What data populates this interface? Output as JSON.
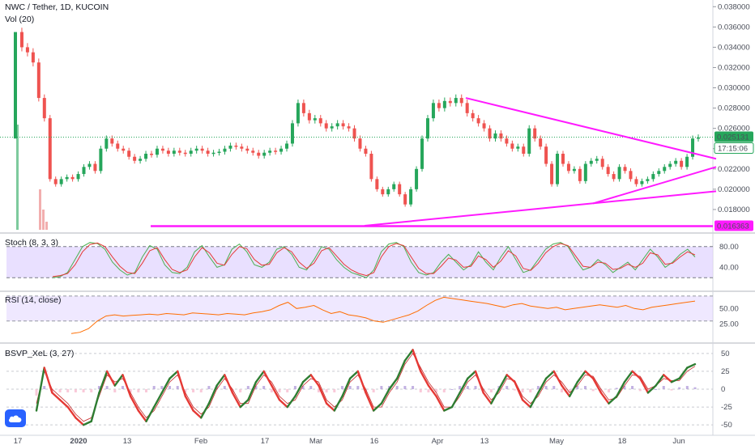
{
  "header": {
    "symbol_title": "NWC / Tether, 1D, KUCOIN",
    "volume_label": "Vol (20)"
  },
  "price_badges": {
    "last_price": "0.025131",
    "countdown": "17:15:06",
    "support_level": "0.016363"
  },
  "colors": {
    "up": "#26a65b",
    "down": "#ef5350",
    "trend": "#ff1aff",
    "stoch_k": "#4caf50",
    "stoch_d": "#e53935",
    "rsi": "#ff6d00",
    "band": "#e1d5ff",
    "logo": "#2962ff"
  },
  "x_axis": {
    "ticks": [
      "17",
      "2020",
      "13",
      "Feb",
      "17",
      "Mar",
      "16",
      "Apr",
      "13",
      "May",
      "18",
      "Jun"
    ]
  },
  "price_axis": {
    "ticks": [
      "0.038000",
      "0.036000",
      "0.034000",
      "0.032000",
      "0.030000",
      "0.028000",
      "0.026000",
      "0.024000",
      "0.022000",
      "0.020000",
      "0.018000"
    ]
  },
  "panes": {
    "stoch": {
      "title": "Stoch (8, 3, 3)",
      "ticks": [
        "80.00",
        "40.00"
      ]
    },
    "rsi": {
      "title": "RSI (14, close)",
      "ticks": [
        "50.00",
        "25.00"
      ]
    },
    "bsvp": {
      "title": "BSVP_XeL (3, 27)",
      "ticks": [
        "50",
        "25",
        "0",
        "-25",
        "-50"
      ]
    }
  },
  "chart_data": {
    "type": "candlestick",
    "price_ylim": [
      0.016,
      0.0385
    ],
    "price_series": [
      0.0355,
      0.034,
      0.0335,
      0.0325,
      0.029,
      0.027,
      0.021,
      0.0205,
      0.021,
      0.0212,
      0.021,
      0.0215,
      0.0222,
      0.0225,
      0.0218,
      0.024,
      0.025,
      0.0245,
      0.024,
      0.0238,
      0.0232,
      0.0228,
      0.023,
      0.0235,
      0.0234,
      0.024,
      0.0238,
      0.0235,
      0.0238,
      0.0236,
      0.0235,
      0.0238,
      0.024,
      0.0238,
      0.0235,
      0.0236,
      0.0237,
      0.024,
      0.0243,
      0.0242,
      0.024,
      0.0238,
      0.0236,
      0.0233,
      0.0236,
      0.0238,
      0.0237,
      0.024,
      0.0245,
      0.0265,
      0.0285,
      0.0275,
      0.0268,
      0.027,
      0.0265,
      0.026,
      0.0262,
      0.0265,
      0.0262,
      0.026,
      0.025,
      0.024,
      0.0235,
      0.021,
      0.02,
      0.0195,
      0.02,
      0.0205,
      0.0195,
      0.0185,
      0.02,
      0.022,
      0.025,
      0.027,
      0.0285,
      0.028,
      0.0287,
      0.0285,
      0.029,
      0.0285,
      0.0275,
      0.027,
      0.0265,
      0.026,
      0.025,
      0.0255,
      0.025,
      0.0245,
      0.024,
      0.0242,
      0.0235,
      0.026,
      0.025,
      0.0242,
      0.0225,
      0.0205,
      0.0235,
      0.0225,
      0.0218,
      0.022,
      0.0208,
      0.0225,
      0.0228,
      0.023,
      0.0222,
      0.0215,
      0.021,
      0.0222,
      0.0218,
      0.021,
      0.0205,
      0.0208,
      0.021,
      0.0215,
      0.0218,
      0.0222,
      0.0225,
      0.0228,
      0.0222,
      0.0232,
      0.025,
      0.0251
    ],
    "trendlines": [
      {
        "name": "upper-resistance",
        "from": {
          "x": "Apr 9",
          "y": 0.029
        },
        "to": {
          "x": "Jun 11",
          "y": 0.023
        }
      },
      {
        "name": "lower-support",
        "from": {
          "x": "Mar 11",
          "y": 0.0164
        },
        "to": {
          "x": "Jun 11",
          "y": 0.0198
        }
      },
      {
        "name": "inner-support",
        "from": {
          "x": "May 10",
          "y": 0.0186
        },
        "to": {
          "x": "Jun 11",
          "y": 0.0222
        }
      },
      {
        "name": "horizontal-support",
        "y": 0.016363
      }
    ],
    "stoch_ylim": [
      0,
      100
    ],
    "stoch_levels": [
      80,
      20
    ],
    "stoch_k": [
      20,
      22,
      30,
      55,
      80,
      88,
      86,
      75,
      50,
      35,
      25,
      30,
      60,
      82,
      75,
      45,
      30,
      28,
      40,
      70,
      82,
      60,
      40,
      45,
      75,
      85,
      70,
      45,
      40,
      50,
      75,
      80,
      65,
      40,
      35,
      55,
      80,
      75,
      55,
      40,
      30,
      25,
      20,
      35,
      70,
      85,
      88,
      80,
      50,
      30,
      25,
      30,
      50,
      65,
      50,
      35,
      45,
      70,
      50,
      35,
      60,
      80,
      55,
      30,
      35,
      55,
      75,
      85,
      88,
      80,
      55,
      35,
      40,
      55,
      45,
      30,
      40,
      50,
      35,
      55,
      75,
      60,
      40,
      50,
      65,
      75,
      60
    ],
    "stoch_d": [
      22,
      24,
      28,
      45,
      70,
      84,
      87,
      80,
      60,
      42,
      30,
      28,
      48,
      72,
      78,
      55,
      36,
      30,
      35,
      60,
      78,
      68,
      48,
      44,
      65,
      80,
      76,
      55,
      44,
      46,
      68,
      78,
      70,
      50,
      38,
      48,
      72,
      78,
      62,
      46,
      35,
      28,
      24,
      30,
      60,
      80,
      86,
      82,
      60,
      38,
      28,
      28,
      42,
      58,
      54,
      40,
      42,
      62,
      55,
      40,
      52,
      72,
      62,
      38,
      34,
      48,
      68,
      80,
      86,
      82,
      62,
      42,
      40,
      50,
      48,
      36,
      38,
      46,
      40,
      48,
      68,
      64,
      46,
      48,
      60,
      70,
      64
    ],
    "rsi_ylim": [
      0,
      75
    ],
    "rsi_levels": [
      70,
      30
    ],
    "rsi": [
      10,
      12,
      18,
      30,
      38,
      40,
      38,
      39,
      40,
      41,
      40,
      42,
      41,
      40,
      43,
      42,
      41,
      40,
      42,
      41,
      40,
      43,
      45,
      48,
      55,
      60,
      50,
      52,
      55,
      48,
      42,
      45,
      40,
      38,
      35,
      30,
      28,
      32,
      36,
      40,
      46,
      55,
      63,
      68,
      66,
      64,
      62,
      60,
      58,
      55,
      52,
      56,
      58,
      54,
      52,
      50,
      52,
      48,
      50,
      52,
      54,
      56,
      54,
      52,
      55,
      50,
      48,
      52,
      54,
      56,
      58,
      60,
      62
    ],
    "bsvp_ylim": [
      -60,
      60
    ],
    "bsvp_levels": [
      50,
      25,
      0,
      -25,
      -50
    ],
    "bsvp_main": [
      -30,
      30,
      -5,
      -15,
      -25,
      -40,
      -50,
      -45,
      -5,
      25,
      5,
      20,
      -10,
      -30,
      -45,
      -25,
      -5,
      15,
      25,
      -10,
      -30,
      -40,
      -20,
      5,
      20,
      -5,
      -25,
      -15,
      10,
      25,
      5,
      -15,
      -25,
      -10,
      10,
      20,
      5,
      -20,
      -30,
      -10,
      15,
      25,
      -5,
      -30,
      -20,
      0,
      15,
      40,
      55,
      25,
      5,
      -10,
      -30,
      -25,
      -5,
      15,
      25,
      -5,
      -20,
      0,
      20,
      10,
      -15,
      -25,
      -5,
      15,
      25,
      5,
      -10,
      10,
      25,
      15,
      -5,
      -20,
      -10,
      10,
      25,
      15,
      -5,
      5,
      20,
      10,
      15,
      30,
      35
    ],
    "bsvp_signal": [
      -20,
      25,
      0,
      -10,
      -20,
      -35,
      -45,
      -40,
      -10,
      20,
      10,
      15,
      -5,
      -25,
      -40,
      -30,
      -10,
      10,
      20,
      -5,
      -25,
      -35,
      -25,
      0,
      15,
      0,
      -20,
      -20,
      5,
      20,
      10,
      -10,
      -20,
      -15,
      5,
      15,
      10,
      -15,
      -25,
      -15,
      10,
      20,
      0,
      -25,
      -25,
      -5,
      10,
      35,
      50,
      30,
      10,
      -5,
      -25,
      -25,
      -10,
      10,
      20,
      0,
      -15,
      -5,
      15,
      12,
      -10,
      -20,
      -10,
      10,
      20,
      10,
      -5,
      5,
      20,
      18,
      0,
      -15,
      -12,
      5,
      20,
      18,
      0,
      5,
      15,
      12,
      12,
      25,
      32
    ]
  }
}
